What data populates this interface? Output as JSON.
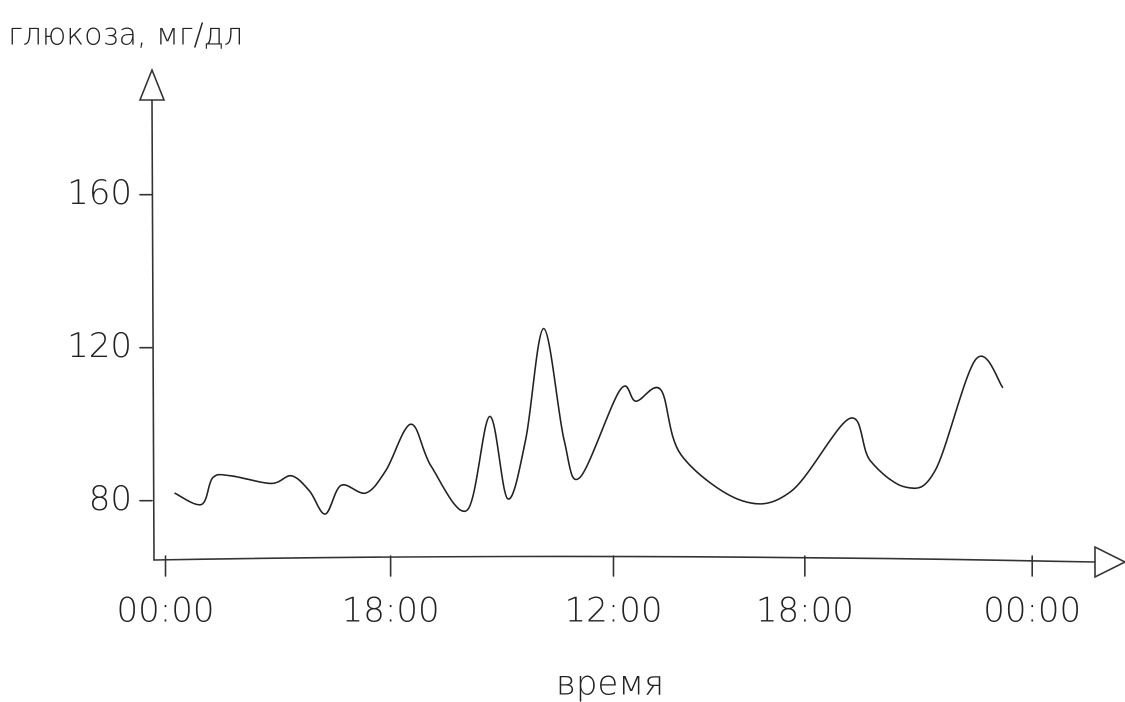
{
  "chart_data": {
    "type": "line",
    "y_label": "глюкоза, мг/дл",
    "x_label": "время",
    "x": [
      0.04,
      0.16,
      0.21,
      0.29,
      0.47,
      0.56,
      0.64,
      0.71,
      0.78,
      0.89,
      0.98,
      1.09,
      1.18,
      1.34,
      1.44,
      1.52,
      1.6,
      1.68,
      1.77,
      1.84,
      2.02,
      2.09,
      2.2,
      2.29,
      2.56,
      2.78,
      3.04,
      3.13,
      3.29,
      3.42,
      3.6,
      3.72
    ],
    "series": [
      {
        "color": "#222222",
        "values": [
          82,
          79,
          86,
          86.5,
          84.5,
          86.5,
          82.5,
          76.5,
          84,
          82,
          88,
          100,
          89,
          77.5,
          102,
          80.5,
          96,
          125,
          96,
          86,
          109,
          106,
          109,
          92,
          80,
          82.5,
          101.5,
          90.5,
          83.5,
          88,
          117,
          109.5
        ]
      }
    ],
    "xlim": [
      -0.06,
      4.24
    ],
    "xticks": [
      {
        "value": 0,
        "label": "00:00"
      },
      {
        "value": 1,
        "label": "18:00"
      },
      {
        "value": 1.99,
        "label": "12:00"
      },
      {
        "value": 2.84,
        "label": "18:00"
      },
      {
        "value": 3.85,
        "label": "00:00"
      }
    ],
    "ylim": [
      65,
      190
    ],
    "yticks": [
      80,
      120,
      160
    ]
  }
}
